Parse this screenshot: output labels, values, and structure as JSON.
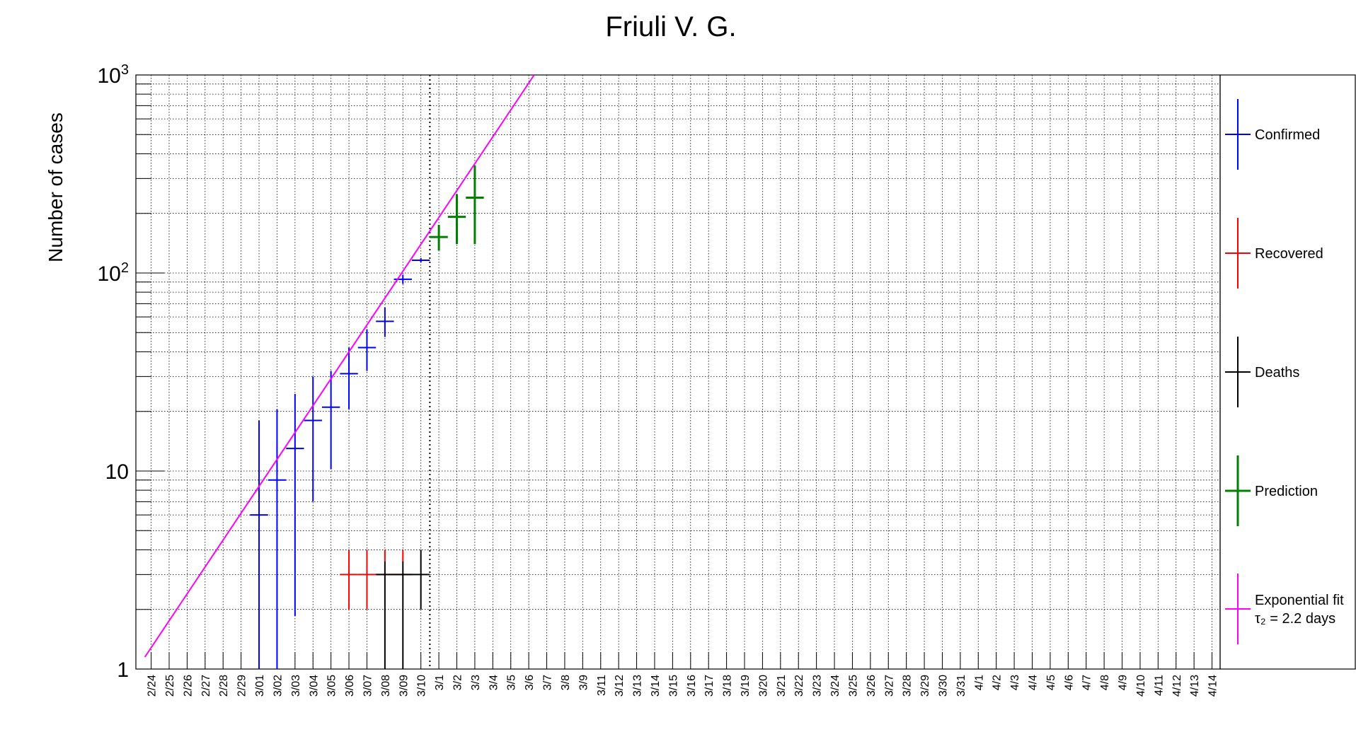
{
  "chart_data": {
    "type": "scatter",
    "title": "Friuli V. G.",
    "ylabel": "Number of cases",
    "xlabel": "",
    "yscale": "log",
    "ylim": [
      1,
      1000
    ],
    "y_ticks": [
      {
        "value": 1,
        "base": "1",
        "exp": ""
      },
      {
        "value": 10,
        "base": "10",
        "exp": ""
      },
      {
        "value": 100,
        "base": "10",
        "exp": "2"
      },
      {
        "value": 1000,
        "base": "10",
        "exp": "3"
      }
    ],
    "categories": [
      "2/24",
      "2/25",
      "2/26",
      "2/27",
      "2/28",
      "2/29",
      "3/01",
      "3/02",
      "3/03",
      "3/04",
      "3/05",
      "3/06",
      "3/07",
      "3/08",
      "3/09",
      "3/10",
      "3/1",
      "3/2",
      "3/3",
      "3/4",
      "3/5",
      "3/6",
      "3/7",
      "3/8",
      "3/9",
      "3/11",
      "3/12",
      "3/13",
      "3/14",
      "3/15",
      "3/16",
      "3/17",
      "3/18",
      "3/19",
      "3/20",
      "3/21",
      "3/22",
      "3/23",
      "3/24",
      "3/25",
      "3/26",
      "3/27",
      "3/28",
      "3/29",
      "3/30",
      "3/31",
      "4/1",
      "4/2",
      "4/3",
      "4/4",
      "4/5",
      "4/6",
      "4/7",
      "4/8",
      "4/9",
      "4/10",
      "4/11",
      "4/12",
      "4/13",
      "4/14"
    ],
    "grid": true,
    "legend_position": "right",
    "series": [
      {
        "name": "Confirmed",
        "color": "#0000ff",
        "points": [
          {
            "x": "3/01",
            "y": 6,
            "ylo": 1,
            "yhi": 18
          },
          {
            "x": "3/02",
            "y": 9,
            "ylo": 1,
            "yhi": 20.5
          },
          {
            "x": "3/03",
            "y": 13,
            "ylo": 1.85,
            "yhi": 24.5
          },
          {
            "x": "3/04",
            "y": 18,
            "ylo": 7,
            "yhi": 30
          },
          {
            "x": "3/05",
            "y": 21,
            "ylo": 10.2,
            "yhi": 32
          },
          {
            "x": "3/06",
            "y": 31,
            "ylo": 20.5,
            "yhi": 42
          },
          {
            "x": "3/07",
            "y": 42,
            "ylo": 32,
            "yhi": 52
          },
          {
            "x": "3/08",
            "y": 57,
            "ylo": 47.5,
            "yhi": 67
          },
          {
            "x": "3/09",
            "y": 93,
            "ylo": 88,
            "yhi": 98
          },
          {
            "x": "3/10",
            "y": 116,
            "ylo": 113,
            "yhi": 119
          }
        ]
      },
      {
        "name": "Recovered",
        "color": "#ff0000",
        "points": [
          {
            "x": "3/06",
            "y": 3,
            "ylo": 2,
            "yhi": 4
          },
          {
            "x": "3/07",
            "y": 3,
            "ylo": 2,
            "yhi": 4
          },
          {
            "x": "3/08",
            "y": 3,
            "ylo": 3.5,
            "yhi": 4
          },
          {
            "x": "3/09",
            "y": 3,
            "ylo": 3.5,
            "yhi": 4
          }
        ]
      },
      {
        "name": "Deaths",
        "color": "#000000",
        "points": [
          {
            "x": "3/08",
            "y": 3,
            "ylo": 1,
            "yhi": 3.5
          },
          {
            "x": "3/09",
            "y": 3,
            "ylo": 1,
            "yhi": 3.5
          },
          {
            "x": "3/10",
            "y": 3,
            "ylo": 2,
            "yhi": 4
          }
        ]
      },
      {
        "name": "Prediction",
        "color": "#008000",
        "points": [
          {
            "x": "3/1",
            "y": 152,
            "ylo": 130,
            "yhi": 175
          },
          {
            "x": "3/2",
            "y": 192,
            "ylo": 140,
            "yhi": 250
          },
          {
            "x": "3/3",
            "y": 240,
            "ylo": 140,
            "yhi": 350
          }
        ]
      },
      {
        "name": "Exponential fit",
        "name2": "τ₂ = 2.2 days",
        "color": "#ff00ff",
        "line": {
          "x_start": -0.35,
          "y_start": 1.15,
          "x_end": 21.3,
          "y_end": 1000
        }
      }
    ],
    "vertical_marker": {
      "after": "3/10",
      "style": "dotted"
    }
  }
}
